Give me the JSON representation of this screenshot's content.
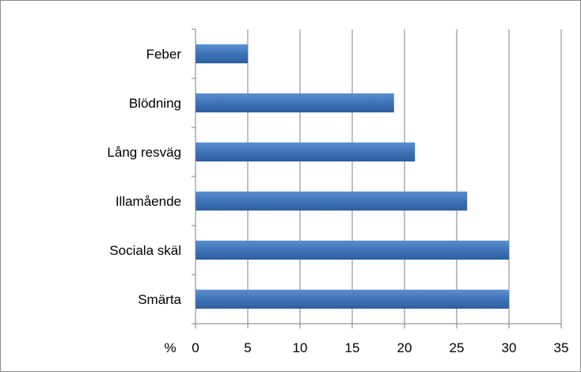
{
  "chart_data": {
    "type": "bar",
    "orientation": "horizontal",
    "categories": [
      "Feber",
      "Blödning",
      "Lång resväg",
      "Illamående",
      "Sociala skäl",
      "Smärta"
    ],
    "values": [
      5,
      19,
      21,
      26,
      30,
      30
    ],
    "xlabel": "%",
    "xlim": [
      0,
      35
    ],
    "xticks": [
      0,
      5,
      10,
      15,
      20,
      25,
      30,
      35
    ],
    "grid": "vertical",
    "legend": "none",
    "bar_color": "#4a7ebb"
  }
}
